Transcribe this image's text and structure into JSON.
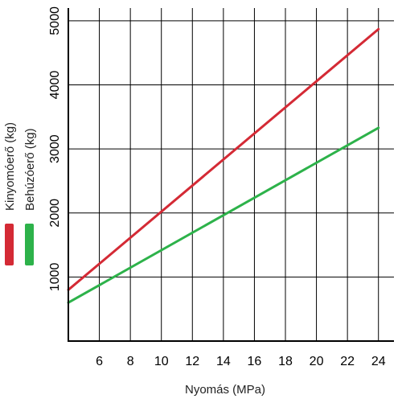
{
  "chart_data": {
    "type": "line",
    "xlabel": "Nyomás (MPa)",
    "xlim": [
      4,
      25
    ],
    "ylim": [
      0,
      5200
    ],
    "x_ticks": [
      6,
      8,
      10,
      12,
      14,
      16,
      18,
      20,
      22,
      24
    ],
    "y_ticks": [
      1000,
      2000,
      3000,
      4000,
      5000
    ],
    "grid": true,
    "legend_position": "left",
    "series": [
      {
        "name": "Kinyomóerő (kg)",
        "color": "#d42a35",
        "x": [
          4,
          24
        ],
        "y": [
          800,
          4870
        ]
      },
      {
        "name": "Behúzóerő (kg)",
        "color": "#2db24a",
        "x": [
          4,
          24
        ],
        "y": [
          600,
          3330
        ]
      }
    ]
  }
}
